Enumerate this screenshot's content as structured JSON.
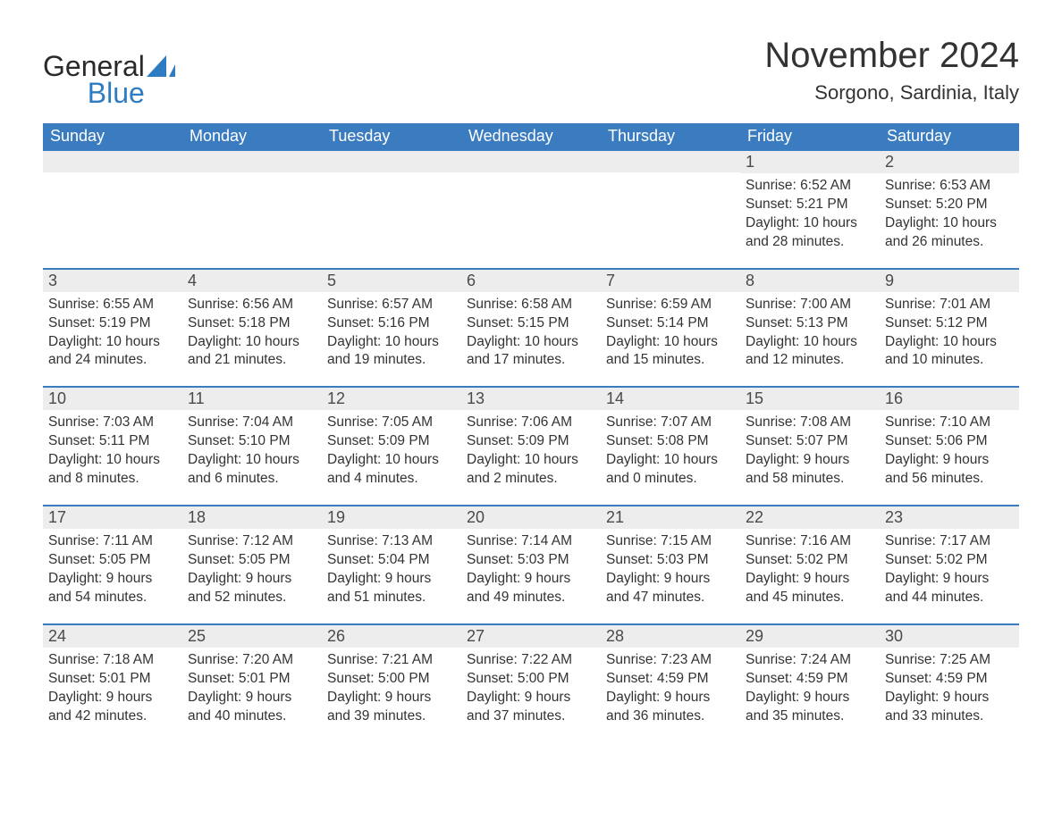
{
  "brand": {
    "general": "General",
    "blue": "Blue",
    "general_color": "#2a2a2a",
    "blue_color": "#2e7cc2",
    "sail_color": "#2e7cc2"
  },
  "title": "November 2024",
  "location": "Sorgono, Sardinia, Italy",
  "colors": {
    "header_bg": "#3a7cbf",
    "header_text": "#ffffff",
    "daynum_bg": "#ededed",
    "daynum_border": "#3a7cbf",
    "body_text": "#333333",
    "page_bg": "#ffffff"
  },
  "typography": {
    "title_fontsize": 40,
    "location_fontsize": 22,
    "header_fontsize": 18,
    "daynum_fontsize": 18,
    "detail_fontsize": 15.5,
    "font_family": "Arial"
  },
  "days_of_week": [
    "Sunday",
    "Monday",
    "Tuesday",
    "Wednesday",
    "Thursday",
    "Friday",
    "Saturday"
  ],
  "weeks": [
    [
      null,
      null,
      null,
      null,
      null,
      {
        "n": "1",
        "sunrise": "Sunrise: 6:52 AM",
        "sunset": "Sunset: 5:21 PM",
        "dl1": "Daylight: 10 hours",
        "dl2": "and 28 minutes."
      },
      {
        "n": "2",
        "sunrise": "Sunrise: 6:53 AM",
        "sunset": "Sunset: 5:20 PM",
        "dl1": "Daylight: 10 hours",
        "dl2": "and 26 minutes."
      }
    ],
    [
      {
        "n": "3",
        "sunrise": "Sunrise: 6:55 AM",
        "sunset": "Sunset: 5:19 PM",
        "dl1": "Daylight: 10 hours",
        "dl2": "and 24 minutes."
      },
      {
        "n": "4",
        "sunrise": "Sunrise: 6:56 AM",
        "sunset": "Sunset: 5:18 PM",
        "dl1": "Daylight: 10 hours",
        "dl2": "and 21 minutes."
      },
      {
        "n": "5",
        "sunrise": "Sunrise: 6:57 AM",
        "sunset": "Sunset: 5:16 PM",
        "dl1": "Daylight: 10 hours",
        "dl2": "and 19 minutes."
      },
      {
        "n": "6",
        "sunrise": "Sunrise: 6:58 AM",
        "sunset": "Sunset: 5:15 PM",
        "dl1": "Daylight: 10 hours",
        "dl2": "and 17 minutes."
      },
      {
        "n": "7",
        "sunrise": "Sunrise: 6:59 AM",
        "sunset": "Sunset: 5:14 PM",
        "dl1": "Daylight: 10 hours",
        "dl2": "and 15 minutes."
      },
      {
        "n": "8",
        "sunrise": "Sunrise: 7:00 AM",
        "sunset": "Sunset: 5:13 PM",
        "dl1": "Daylight: 10 hours",
        "dl2": "and 12 minutes."
      },
      {
        "n": "9",
        "sunrise": "Sunrise: 7:01 AM",
        "sunset": "Sunset: 5:12 PM",
        "dl1": "Daylight: 10 hours",
        "dl2": "and 10 minutes."
      }
    ],
    [
      {
        "n": "10",
        "sunrise": "Sunrise: 7:03 AM",
        "sunset": "Sunset: 5:11 PM",
        "dl1": "Daylight: 10 hours",
        "dl2": "and 8 minutes."
      },
      {
        "n": "11",
        "sunrise": "Sunrise: 7:04 AM",
        "sunset": "Sunset: 5:10 PM",
        "dl1": "Daylight: 10 hours",
        "dl2": "and 6 minutes."
      },
      {
        "n": "12",
        "sunrise": "Sunrise: 7:05 AM",
        "sunset": "Sunset: 5:09 PM",
        "dl1": "Daylight: 10 hours",
        "dl2": "and 4 minutes."
      },
      {
        "n": "13",
        "sunrise": "Sunrise: 7:06 AM",
        "sunset": "Sunset: 5:09 PM",
        "dl1": "Daylight: 10 hours",
        "dl2": "and 2 minutes."
      },
      {
        "n": "14",
        "sunrise": "Sunrise: 7:07 AM",
        "sunset": "Sunset: 5:08 PM",
        "dl1": "Daylight: 10 hours",
        "dl2": "and 0 minutes."
      },
      {
        "n": "15",
        "sunrise": "Sunrise: 7:08 AM",
        "sunset": "Sunset: 5:07 PM",
        "dl1": "Daylight: 9 hours",
        "dl2": "and 58 minutes."
      },
      {
        "n": "16",
        "sunrise": "Sunrise: 7:10 AM",
        "sunset": "Sunset: 5:06 PM",
        "dl1": "Daylight: 9 hours",
        "dl2": "and 56 minutes."
      }
    ],
    [
      {
        "n": "17",
        "sunrise": "Sunrise: 7:11 AM",
        "sunset": "Sunset: 5:05 PM",
        "dl1": "Daylight: 9 hours",
        "dl2": "and 54 minutes."
      },
      {
        "n": "18",
        "sunrise": "Sunrise: 7:12 AM",
        "sunset": "Sunset: 5:05 PM",
        "dl1": "Daylight: 9 hours",
        "dl2": "and 52 minutes."
      },
      {
        "n": "19",
        "sunrise": "Sunrise: 7:13 AM",
        "sunset": "Sunset: 5:04 PM",
        "dl1": "Daylight: 9 hours",
        "dl2": "and 51 minutes."
      },
      {
        "n": "20",
        "sunrise": "Sunrise: 7:14 AM",
        "sunset": "Sunset: 5:03 PM",
        "dl1": "Daylight: 9 hours",
        "dl2": "and 49 minutes."
      },
      {
        "n": "21",
        "sunrise": "Sunrise: 7:15 AM",
        "sunset": "Sunset: 5:03 PM",
        "dl1": "Daylight: 9 hours",
        "dl2": "and 47 minutes."
      },
      {
        "n": "22",
        "sunrise": "Sunrise: 7:16 AM",
        "sunset": "Sunset: 5:02 PM",
        "dl1": "Daylight: 9 hours",
        "dl2": "and 45 minutes."
      },
      {
        "n": "23",
        "sunrise": "Sunrise: 7:17 AM",
        "sunset": "Sunset: 5:02 PM",
        "dl1": "Daylight: 9 hours",
        "dl2": "and 44 minutes."
      }
    ],
    [
      {
        "n": "24",
        "sunrise": "Sunrise: 7:18 AM",
        "sunset": "Sunset: 5:01 PM",
        "dl1": "Daylight: 9 hours",
        "dl2": "and 42 minutes."
      },
      {
        "n": "25",
        "sunrise": "Sunrise: 7:20 AM",
        "sunset": "Sunset: 5:01 PM",
        "dl1": "Daylight: 9 hours",
        "dl2": "and 40 minutes."
      },
      {
        "n": "26",
        "sunrise": "Sunrise: 7:21 AM",
        "sunset": "Sunset: 5:00 PM",
        "dl1": "Daylight: 9 hours",
        "dl2": "and 39 minutes."
      },
      {
        "n": "27",
        "sunrise": "Sunrise: 7:22 AM",
        "sunset": "Sunset: 5:00 PM",
        "dl1": "Daylight: 9 hours",
        "dl2": "and 37 minutes."
      },
      {
        "n": "28",
        "sunrise": "Sunrise: 7:23 AM",
        "sunset": "Sunset: 4:59 PM",
        "dl1": "Daylight: 9 hours",
        "dl2": "and 36 minutes."
      },
      {
        "n": "29",
        "sunrise": "Sunrise: 7:24 AM",
        "sunset": "Sunset: 4:59 PM",
        "dl1": "Daylight: 9 hours",
        "dl2": "and 35 minutes."
      },
      {
        "n": "30",
        "sunrise": "Sunrise: 7:25 AM",
        "sunset": "Sunset: 4:59 PM",
        "dl1": "Daylight: 9 hours",
        "dl2": "and 33 minutes."
      }
    ]
  ]
}
